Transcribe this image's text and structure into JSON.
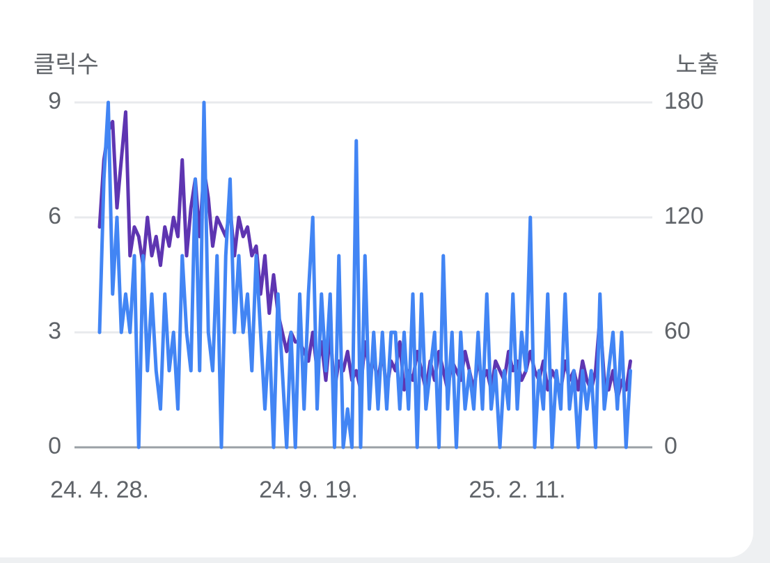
{
  "chart_data": {
    "type": "line",
    "x": [
      "24. 4. 28.",
      null,
      null,
      null,
      null,
      null,
      null,
      null,
      null,
      null,
      null,
      null,
      null,
      null,
      null,
      null,
      null,
      null,
      null,
      null,
      null,
      null,
      null,
      null,
      null,
      null,
      null,
      null,
      null,
      null,
      null,
      null,
      null,
      null,
      null,
      null,
      null,
      null,
      null,
      null,
      null,
      null,
      null,
      null,
      null,
      null,
      null,
      null,
      "24. 9. 19.",
      null,
      null,
      null,
      null,
      null,
      null,
      null,
      null,
      null,
      null,
      null,
      null,
      null,
      null,
      null,
      null,
      null,
      null,
      null,
      null,
      null,
      null,
      null,
      null,
      null,
      null,
      null,
      null,
      null,
      null,
      null,
      null,
      null,
      null,
      null,
      null,
      null,
      null,
      null,
      null,
      null,
      null,
      null,
      null,
      null,
      null,
      null,
      "25. 2. 11.",
      null,
      null,
      null,
      null,
      null,
      null,
      null,
      null,
      null,
      null,
      null,
      null,
      null,
      null,
      null,
      null,
      null,
      null,
      null,
      null,
      null,
      null,
      null,
      null,
      null,
      null
    ],
    "series": [
      {
        "name": "클릭수",
        "color": "#4285f4",
        "axis": "y",
        "values": [
          3,
          7,
          9,
          4,
          6,
          3,
          4,
          3,
          5,
          0,
          5,
          2,
          4,
          2,
          1,
          4,
          2,
          3,
          1,
          5,
          3,
          2,
          7,
          2,
          9,
          3,
          2,
          5,
          0,
          5,
          7,
          3,
          5,
          3,
          4,
          2,
          5,
          3,
          1,
          3,
          0,
          4,
          2,
          0,
          3,
          0,
          4,
          1,
          4,
          6,
          1,
          4,
          2,
          4,
          0,
          5,
          0,
          1,
          0,
          8,
          0,
          5,
          1,
          3,
          1,
          3,
          1,
          3,
          3,
          1,
          3,
          1,
          4,
          0,
          4,
          1,
          2,
          3,
          0,
          5,
          1,
          3,
          0,
          3,
          1,
          2,
          1,
          3,
          1,
          4,
          1,
          2,
          0,
          2,
          1,
          4,
          1,
          3,
          2,
          6,
          0,
          2,
          1,
          4,
          0,
          2,
          1,
          4,
          1,
          2,
          0,
          2,
          1,
          2,
          0,
          4,
          1,
          2,
          3,
          1,
          3,
          0,
          2
        ]
      },
      {
        "name": "노출",
        "color": "#5e35b1",
        "axis": "y2",
        "values": [
          115,
          150,
          165,
          170,
          125,
          150,
          175,
          100,
          115,
          110,
          95,
          120,
          100,
          110,
          95,
          115,
          105,
          120,
          110,
          150,
          100,
          125,
          140,
          110,
          145,
          130,
          105,
          120,
          115,
          110,
          125,
          100,
          120,
          110,
          115,
          100,
          105,
          80,
          100,
          70,
          90,
          70,
          60,
          50,
          60,
          55,
          55,
          50,
          45,
          60,
          40,
          55,
          35,
          60,
          30,
          45,
          40,
          50,
          35,
          40,
          30,
          55,
          40,
          45,
          35,
          50,
          30,
          45,
          40,
          55,
          30,
          40,
          35,
          50,
          40,
          30,
          45,
          35,
          50,
          40,
          30,
          45,
          40,
          35,
          50,
          40,
          30,
          45,
          35,
          40,
          30,
          45,
          40,
          35,
          50,
          40,
          45,
          35,
          40,
          50,
          40,
          35,
          45,
          30,
          40,
          35,
          30,
          45,
          35,
          40,
          30,
          45,
          35,
          30,
          40,
          68,
          35,
          30,
          40,
          25,
          35,
          30,
          45
        ]
      }
    ],
    "ylim": [
      0,
      9
    ],
    "yticks": [
      0,
      3,
      6,
      9
    ],
    "y2lim": [
      0,
      180
    ],
    "y2ticks": [
      0,
      60,
      120,
      180
    ],
    "grid": true
  }
}
